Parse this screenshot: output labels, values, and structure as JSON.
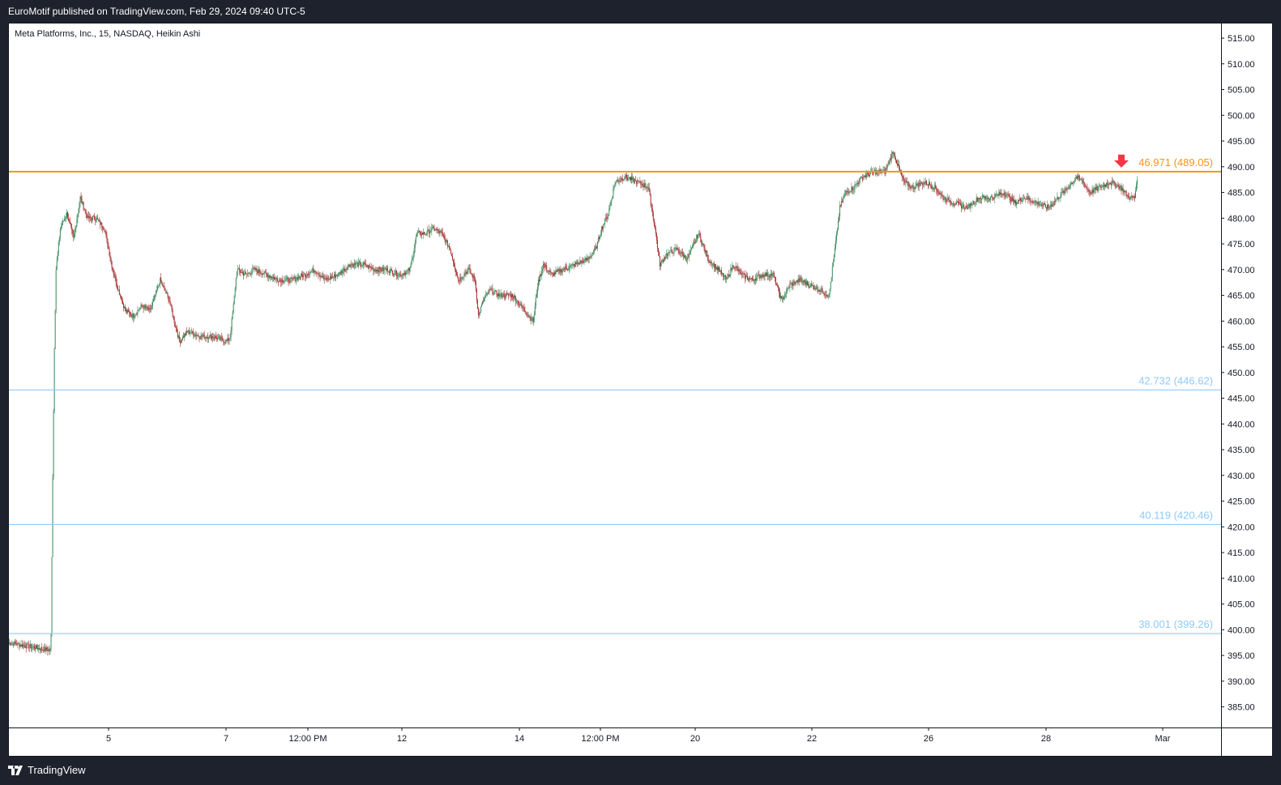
{
  "header": {
    "published": "EuroMotif published on TradingView.com, Feb 29, 2024 09:40 UTC-5"
  },
  "footer": {
    "brand": "TradingView"
  },
  "colors": {
    "up": "#3d8b5f",
    "down": "#a52a2a",
    "resistance": "#f7931a",
    "support": "#90caf9",
    "axis_text": "#131722",
    "border": "#131722"
  },
  "chart_data": {
    "type": "candlestick",
    "title": "Meta Platforms, Inc., 15, NASDAQ, Heikin Ashi",
    "ylim": [
      381,
      518
    ],
    "yticks": [
      "515.00",
      "510.00",
      "505.00",
      "500.00",
      "495.00",
      "490.00",
      "485.00",
      "480.00",
      "475.00",
      "470.00",
      "465.00",
      "460.00",
      "455.00",
      "450.00",
      "445.00",
      "440.00",
      "435.00",
      "430.00",
      "425.00",
      "420.00",
      "415.00",
      "410.00",
      "405.00",
      "400.00",
      "395.00",
      "390.00",
      "385.00"
    ],
    "xticks": [
      {
        "label": "5",
        "x": 124
      },
      {
        "label": "7",
        "x": 269
      },
      {
        "label": "12:00 PM",
        "x": 370
      },
      {
        "label": "12",
        "x": 486
      },
      {
        "label": "14",
        "x": 631
      },
      {
        "label": "12:00 PM",
        "x": 731
      },
      {
        "label": "20",
        "x": 848
      },
      {
        "label": "22",
        "x": 992
      },
      {
        "label": "26",
        "x": 1136
      },
      {
        "label": "28",
        "x": 1281
      },
      {
        "label": "Mar",
        "x": 1425
      }
    ],
    "levels": [
      {
        "label": "46.971 (489.05)",
        "price": 489.05,
        "kind": "resistance"
      },
      {
        "label": "42.732 (446.62)",
        "price": 446.62,
        "kind": "support"
      },
      {
        "label": "40.119 (420.46)",
        "price": 420.46,
        "kind": "support"
      },
      {
        "label": "38.001 (399.26)",
        "price": 399.26,
        "kind": "support"
      }
    ],
    "series": [
      {
        "i": 0,
        "p": 397.5
      },
      {
        "i": 50,
        "p": 396
      },
      {
        "i": 51,
        "p": 399
      },
      {
        "i": 53,
        "p": 430
      },
      {
        "i": 55,
        "p": 455
      },
      {
        "i": 57,
        "p": 470
      },
      {
        "i": 62,
        "p": 478
      },
      {
        "i": 70,
        "p": 481
      },
      {
        "i": 78,
        "p": 476
      },
      {
        "i": 86,
        "p": 484
      },
      {
        "i": 95,
        "p": 480
      },
      {
        "i": 105,
        "p": 480
      },
      {
        "i": 115,
        "p": 478
      },
      {
        "i": 125,
        "p": 470
      },
      {
        "i": 132,
        "p": 466
      },
      {
        "i": 140,
        "p": 462
      },
      {
        "i": 150,
        "p": 461
      },
      {
        "i": 160,
        "p": 463
      },
      {
        "i": 170,
        "p": 462
      },
      {
        "i": 182,
        "p": 468
      },
      {
        "i": 193,
        "p": 464
      },
      {
        "i": 205,
        "p": 456
      },
      {
        "i": 215,
        "p": 458
      },
      {
        "i": 230,
        "p": 457
      },
      {
        "i": 245,
        "p": 457
      },
      {
        "i": 262,
        "p": 456
      },
      {
        "i": 266,
        "p": 457
      },
      {
        "i": 270,
        "p": 463
      },
      {
        "i": 274,
        "p": 470
      },
      {
        "i": 285,
        "p": 469
      },
      {
        "i": 295,
        "p": 470
      },
      {
        "i": 310,
        "p": 469
      },
      {
        "i": 325,
        "p": 468
      },
      {
        "i": 340,
        "p": 468
      },
      {
        "i": 355,
        "p": 469
      },
      {
        "i": 368,
        "p": 470
      },
      {
        "i": 380,
        "p": 468
      },
      {
        "i": 395,
        "p": 469
      },
      {
        "i": 410,
        "p": 471
      },
      {
        "i": 425,
        "p": 471
      },
      {
        "i": 440,
        "p": 470
      },
      {
        "i": 455,
        "p": 470
      },
      {
        "i": 470,
        "p": 469
      },
      {
        "i": 482,
        "p": 470
      },
      {
        "i": 490,
        "p": 477
      },
      {
        "i": 500,
        "p": 477
      },
      {
        "i": 510,
        "p": 478
      },
      {
        "i": 520,
        "p": 477
      },
      {
        "i": 530,
        "p": 474
      },
      {
        "i": 540,
        "p": 468
      },
      {
        "i": 552,
        "p": 470
      },
      {
        "i": 560,
        "p": 468
      },
      {
        "i": 564,
        "p": 461
      },
      {
        "i": 570,
        "p": 464
      },
      {
        "i": 578,
        "p": 466
      },
      {
        "i": 590,
        "p": 465
      },
      {
        "i": 605,
        "p": 465
      },
      {
        "i": 615,
        "p": 463
      },
      {
        "i": 625,
        "p": 461
      },
      {
        "i": 630,
        "p": 460
      },
      {
        "i": 635,
        "p": 467
      },
      {
        "i": 642,
        "p": 471
      },
      {
        "i": 652,
        "p": 469
      },
      {
        "i": 665,
        "p": 470
      },
      {
        "i": 680,
        "p": 471
      },
      {
        "i": 695,
        "p": 472
      },
      {
        "i": 705,
        "p": 474
      },
      {
        "i": 712,
        "p": 478
      },
      {
        "i": 720,
        "p": 481
      },
      {
        "i": 728,
        "p": 487
      },
      {
        "i": 740,
        "p": 488
      },
      {
        "i": 755,
        "p": 487
      },
      {
        "i": 768,
        "p": 486
      },
      {
        "i": 776,
        "p": 478
      },
      {
        "i": 782,
        "p": 471
      },
      {
        "i": 790,
        "p": 473
      },
      {
        "i": 802,
        "p": 474
      },
      {
        "i": 815,
        "p": 472
      },
      {
        "i": 828,
        "p": 477
      },
      {
        "i": 840,
        "p": 472
      },
      {
        "i": 852,
        "p": 470
      },
      {
        "i": 862,
        "p": 468
      },
      {
        "i": 870,
        "p": 471
      },
      {
        "i": 880,
        "p": 469
      },
      {
        "i": 892,
        "p": 468
      },
      {
        "i": 905,
        "p": 469
      },
      {
        "i": 918,
        "p": 469
      },
      {
        "i": 928,
        "p": 464
      },
      {
        "i": 938,
        "p": 467
      },
      {
        "i": 950,
        "p": 468
      },
      {
        "i": 962,
        "p": 467
      },
      {
        "i": 975,
        "p": 466
      },
      {
        "i": 985,
        "p": 465
      },
      {
        "i": 992,
        "p": 474
      },
      {
        "i": 998,
        "p": 482
      },
      {
        "i": 1005,
        "p": 485
      },
      {
        "i": 1015,
        "p": 486
      },
      {
        "i": 1025,
        "p": 488
      },
      {
        "i": 1040,
        "p": 489
      },
      {
        "i": 1052,
        "p": 489
      },
      {
        "i": 1062,
        "p": 493
      },
      {
        "i": 1068,
        "p": 490
      },
      {
        "i": 1075,
        "p": 487
      },
      {
        "i": 1085,
        "p": 486
      },
      {
        "i": 1100,
        "p": 487
      },
      {
        "i": 1112,
        "p": 486
      },
      {
        "i": 1122,
        "p": 484
      },
      {
        "i": 1135,
        "p": 483
      },
      {
        "i": 1150,
        "p": 482
      },
      {
        "i": 1165,
        "p": 484
      },
      {
        "i": 1180,
        "p": 484
      },
      {
        "i": 1195,
        "p": 485
      },
      {
        "i": 1208,
        "p": 483
      },
      {
        "i": 1220,
        "p": 484
      },
      {
        "i": 1235,
        "p": 483
      },
      {
        "i": 1248,
        "p": 482
      },
      {
        "i": 1260,
        "p": 484
      },
      {
        "i": 1272,
        "p": 486
      },
      {
        "i": 1282,
        "p": 488
      },
      {
        "i": 1290,
        "p": 487
      },
      {
        "i": 1298,
        "p": 485
      },
      {
        "i": 1310,
        "p": 486
      },
      {
        "i": 1322,
        "p": 487
      },
      {
        "i": 1335,
        "p": 486
      },
      {
        "i": 1345,
        "p": 484
      },
      {
        "i": 1352,
        "p": 484
      },
      {
        "i": 1355,
        "p": 488
      }
    ]
  }
}
